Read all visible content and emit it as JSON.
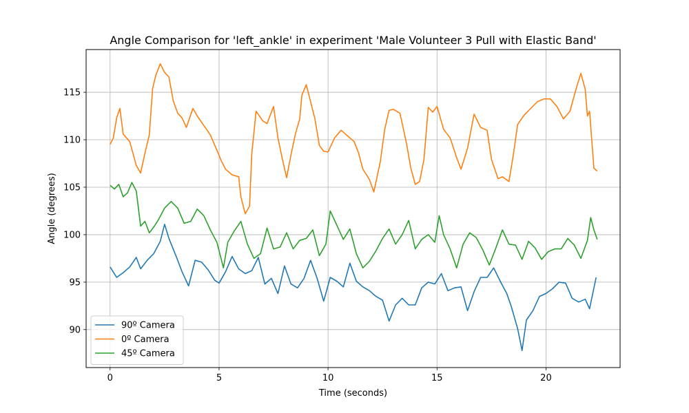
{
  "chart_data": {
    "type": "line",
    "title": "Angle Comparison for 'left_ankle' in experiment 'Male Volunteer 3 Pull with Elastic Band'",
    "xlabel": "Time (seconds)",
    "ylabel": "Angle (degrees)",
    "xlim": [
      -1.1,
      23.4
    ],
    "ylim": [
      86.0,
      119.5
    ],
    "xticks": [
      0,
      5,
      10,
      15,
      20
    ],
    "yticks": [
      90,
      95,
      100,
      105,
      110,
      115
    ],
    "grid": true,
    "legend_position": "lower-left",
    "series": [
      {
        "name": "90º Camera",
        "color": "#1f77b4",
        "points": [
          [
            0,
            96.6
          ],
          [
            0.3,
            95.5
          ],
          [
            0.6,
            96.0
          ],
          [
            0.9,
            96.6
          ],
          [
            1.2,
            97.6
          ],
          [
            1.4,
            96.4
          ],
          [
            1.7,
            97.3
          ],
          [
            2.0,
            98.0
          ],
          [
            2.3,
            99.3
          ],
          [
            2.5,
            101.1
          ],
          [
            2.7,
            99.6
          ],
          [
            3.0,
            97.9
          ],
          [
            3.3,
            96.1
          ],
          [
            3.6,
            94.6
          ],
          [
            3.9,
            97.3
          ],
          [
            4.2,
            97.1
          ],
          [
            4.5,
            96.3
          ],
          [
            4.8,
            95.2
          ],
          [
            5.0,
            94.9
          ],
          [
            5.3,
            96.1
          ],
          [
            5.6,
            97.7
          ],
          [
            5.9,
            96.4
          ],
          [
            6.2,
            95.9
          ],
          [
            6.5,
            96.2
          ],
          [
            6.8,
            97.6
          ],
          [
            7.1,
            94.8
          ],
          [
            7.4,
            95.4
          ],
          [
            7.7,
            93.8
          ],
          [
            8.0,
            96.7
          ],
          [
            8.3,
            94.8
          ],
          [
            8.6,
            94.4
          ],
          [
            8.9,
            95.4
          ],
          [
            9.2,
            97.3
          ],
          [
            9.5,
            95.4
          ],
          [
            9.8,
            93.0
          ],
          [
            10.1,
            95.5
          ],
          [
            10.4,
            95.1
          ],
          [
            10.7,
            94.5
          ],
          [
            11.0,
            97.0
          ],
          [
            11.3,
            95.1
          ],
          [
            11.6,
            94.5
          ],
          [
            11.9,
            94.1
          ],
          [
            12.2,
            93.5
          ],
          [
            12.5,
            93.1
          ],
          [
            12.8,
            90.9
          ],
          [
            13.1,
            92.6
          ],
          [
            13.4,
            93.3
          ],
          [
            13.7,
            92.6
          ],
          [
            14.0,
            92.6
          ],
          [
            14.3,
            94.4
          ],
          [
            14.6,
            95.0
          ],
          [
            14.9,
            94.8
          ],
          [
            15.2,
            95.9
          ],
          [
            15.5,
            94.1
          ],
          [
            15.8,
            94.4
          ],
          [
            16.1,
            94.5
          ],
          [
            16.4,
            92.0
          ],
          [
            16.7,
            94.0
          ],
          [
            17.0,
            95.5
          ],
          [
            17.3,
            95.5
          ],
          [
            17.6,
            96.5
          ],
          [
            17.9,
            95.1
          ],
          [
            18.2,
            93.8
          ],
          [
            18.4,
            92.5
          ],
          [
            18.7,
            90.1
          ],
          [
            18.9,
            87.8
          ],
          [
            19.1,
            91.0
          ],
          [
            19.4,
            92.0
          ],
          [
            19.7,
            93.5
          ],
          [
            20.0,
            93.8
          ],
          [
            20.3,
            94.3
          ],
          [
            20.6,
            95.0
          ],
          [
            20.9,
            94.9
          ],
          [
            21.2,
            93.3
          ],
          [
            21.5,
            92.9
          ],
          [
            21.8,
            93.2
          ],
          [
            22.0,
            92.2
          ],
          [
            22.3,
            95.5
          ]
        ]
      },
      {
        "name": "0º Camera",
        "color": "#ff7f0e",
        "points": [
          [
            0,
            109.5
          ],
          [
            0.15,
            110.2
          ],
          [
            0.3,
            112.3
          ],
          [
            0.45,
            113.3
          ],
          [
            0.6,
            110.6
          ],
          [
            0.9,
            109.8
          ],
          [
            1.2,
            107.3
          ],
          [
            1.4,
            106.5
          ],
          [
            1.6,
            108.6
          ],
          [
            1.8,
            110.5
          ],
          [
            1.95,
            115.4
          ],
          [
            2.1,
            116.8
          ],
          [
            2.3,
            118.0
          ],
          [
            2.5,
            117.1
          ],
          [
            2.7,
            116.6
          ],
          [
            2.9,
            114.1
          ],
          [
            3.1,
            112.8
          ],
          [
            3.3,
            112.3
          ],
          [
            3.5,
            111.3
          ],
          [
            3.8,
            113.3
          ],
          [
            4.0,
            112.5
          ],
          [
            4.3,
            111.5
          ],
          [
            4.6,
            110.5
          ],
          [
            4.9,
            108.9
          ],
          [
            5.1,
            107.8
          ],
          [
            5.3,
            106.9
          ],
          [
            5.6,
            106.3
          ],
          [
            5.9,
            106.1
          ],
          [
            6.0,
            104.0
          ],
          [
            6.2,
            102.2
          ],
          [
            6.4,
            103.0
          ],
          [
            6.5,
            108.5
          ],
          [
            6.7,
            113.0
          ],
          [
            7.0,
            112.0
          ],
          [
            7.2,
            111.7
          ],
          [
            7.5,
            113.5
          ],
          [
            7.7,
            110.2
          ],
          [
            7.9,
            108.0
          ],
          [
            8.1,
            106.0
          ],
          [
            8.3,
            108.4
          ],
          [
            8.5,
            110.6
          ],
          [
            8.7,
            112.2
          ],
          [
            8.8,
            114.7
          ],
          [
            9.0,
            115.8
          ],
          [
            9.2,
            114.0
          ],
          [
            9.4,
            112.2
          ],
          [
            9.6,
            109.4
          ],
          [
            9.8,
            108.8
          ],
          [
            10.0,
            108.7
          ],
          [
            10.3,
            110.2
          ],
          [
            10.6,
            111.0
          ],
          [
            10.9,
            110.4
          ],
          [
            11.2,
            109.8
          ],
          [
            11.4,
            108.6
          ],
          [
            11.6,
            106.9
          ],
          [
            11.9,
            105.8
          ],
          [
            12.1,
            104.5
          ],
          [
            12.4,
            107.7
          ],
          [
            12.6,
            111.1
          ],
          [
            12.8,
            113.1
          ],
          [
            13.0,
            113.2
          ],
          [
            13.3,
            112.8
          ],
          [
            13.6,
            109.6
          ],
          [
            13.8,
            107.0
          ],
          [
            14.0,
            105.3
          ],
          [
            14.2,
            105.6
          ],
          [
            14.4,
            107.9
          ],
          [
            14.6,
            113.4
          ],
          [
            14.8,
            112.9
          ],
          [
            15.0,
            113.5
          ],
          [
            15.3,
            111.1
          ],
          [
            15.6,
            110.2
          ],
          [
            15.9,
            108.1
          ],
          [
            16.1,
            106.9
          ],
          [
            16.4,
            109.1
          ],
          [
            16.7,
            112.7
          ],
          [
            17.0,
            111.3
          ],
          [
            17.3,
            111.0
          ],
          [
            17.5,
            107.9
          ],
          [
            17.8,
            105.9
          ],
          [
            18.0,
            106.1
          ],
          [
            18.3,
            105.6
          ],
          [
            18.5,
            108.4
          ],
          [
            18.7,
            111.6
          ],
          [
            19.0,
            112.6
          ],
          [
            19.3,
            113.3
          ],
          [
            19.6,
            114.0
          ],
          [
            19.9,
            114.3
          ],
          [
            20.2,
            114.3
          ],
          [
            20.5,
            113.5
          ],
          [
            20.8,
            112.2
          ],
          [
            21.1,
            113.0
          ],
          [
            21.4,
            115.5
          ],
          [
            21.6,
            117.0
          ],
          [
            21.8,
            115.3
          ],
          [
            21.9,
            112.5
          ],
          [
            22.0,
            113.0
          ],
          [
            22.2,
            107.0
          ],
          [
            22.35,
            106.7
          ]
        ]
      },
      {
        "name": "45º Camera",
        "color": "#2ca02c",
        "points": [
          [
            0,
            105.2
          ],
          [
            0.2,
            104.8
          ],
          [
            0.4,
            105.3
          ],
          [
            0.6,
            104.0
          ],
          [
            0.8,
            104.4
          ],
          [
            1.0,
            105.5
          ],
          [
            1.2,
            104.6
          ],
          [
            1.4,
            100.9
          ],
          [
            1.6,
            101.4
          ],
          [
            1.8,
            100.2
          ],
          [
            2.0,
            100.8
          ],
          [
            2.2,
            101.5
          ],
          [
            2.5,
            102.8
          ],
          [
            2.8,
            103.5
          ],
          [
            3.1,
            102.8
          ],
          [
            3.4,
            101.2
          ],
          [
            3.7,
            101.4
          ],
          [
            4.0,
            102.7
          ],
          [
            4.3,
            102.0
          ],
          [
            4.6,
            100.5
          ],
          [
            4.9,
            99.2
          ],
          [
            5.2,
            96.5
          ],
          [
            5.4,
            99.2
          ],
          [
            5.7,
            100.4
          ],
          [
            6.0,
            101.4
          ],
          [
            6.3,
            99.0
          ],
          [
            6.6,
            97.5
          ],
          [
            6.9,
            98.0
          ],
          [
            7.2,
            100.7
          ],
          [
            7.5,
            98.5
          ],
          [
            7.8,
            98.7
          ],
          [
            8.1,
            100.2
          ],
          [
            8.4,
            98.5
          ],
          [
            8.7,
            99.4
          ],
          [
            9.0,
            99.6
          ],
          [
            9.3,
            100.5
          ],
          [
            9.6,
            97.8
          ],
          [
            9.9,
            99.0
          ],
          [
            10.1,
            102.5
          ],
          [
            10.4,
            101.0
          ],
          [
            10.7,
            99.5
          ],
          [
            11.0,
            100.6
          ],
          [
            11.3,
            98.0
          ],
          [
            11.6,
            96.5
          ],
          [
            11.9,
            97.2
          ],
          [
            12.2,
            98.3
          ],
          [
            12.5,
            99.6
          ],
          [
            12.8,
            100.6
          ],
          [
            13.1,
            99.0
          ],
          [
            13.4,
            100.0
          ],
          [
            13.7,
            101.5
          ],
          [
            14.0,
            98.5
          ],
          [
            14.3,
            99.5
          ],
          [
            14.6,
            100.0
          ],
          [
            14.9,
            99.2
          ],
          [
            15.1,
            102.0
          ],
          [
            15.3,
            100.0
          ],
          [
            15.6,
            98.5
          ],
          [
            15.9,
            96.5
          ],
          [
            16.2,
            99.0
          ],
          [
            16.5,
            100.2
          ],
          [
            16.8,
            99.7
          ],
          [
            17.1,
            98.4
          ],
          [
            17.4,
            96.8
          ],
          [
            17.7,
            98.6
          ],
          [
            18.0,
            100.5
          ],
          [
            18.3,
            99.0
          ],
          [
            18.6,
            98.9
          ],
          [
            18.9,
            97.4
          ],
          [
            19.2,
            99.3
          ],
          [
            19.5,
            98.6
          ],
          [
            19.8,
            97.4
          ],
          [
            20.1,
            98.2
          ],
          [
            20.4,
            98.5
          ],
          [
            20.7,
            98.5
          ],
          [
            21.0,
            99.6
          ],
          [
            21.3,
            98.9
          ],
          [
            21.6,
            97.5
          ],
          [
            21.9,
            99.4
          ],
          [
            22.05,
            101.8
          ],
          [
            22.2,
            100.5
          ],
          [
            22.35,
            99.5
          ]
        ]
      }
    ]
  }
}
